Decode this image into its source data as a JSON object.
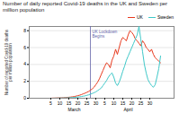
{
  "chart_data": {
    "type": "line",
    "title": "Number of daily reported Covid-19 deaths in the UK and Sweden per million population",
    "ylabel": "Number of reported Covid-19 deaths\nper million population",
    "categories": [
      null,
      null,
      null,
      null,
      "5",
      null,
      null,
      null,
      null,
      "10",
      null,
      null,
      null,
      null,
      "15",
      null,
      null,
      null,
      null,
      "20",
      null,
      null,
      null,
      null,
      "25",
      null,
      null,
      null,
      null,
      "30",
      null,
      null,
      null,
      null,
      "5",
      null,
      null,
      null,
      null,
      "10",
      null,
      null,
      null,
      null,
      "15",
      null,
      null,
      null,
      null,
      "20",
      null,
      null,
      null,
      null,
      "25",
      null,
      null,
      null,
      null,
      "30",
      null,
      null,
      null,
      null,
      null,
      null
    ],
    "series": [
      {
        "name": "UK",
        "color": "#e8391d",
        "values": [
          0.0,
          0.0,
          0.0,
          0.0,
          0.0,
          0.02,
          0.02,
          0.03,
          0.04,
          0.04,
          0.05,
          0.06,
          0.08,
          0.1,
          0.12,
          0.14,
          0.17,
          0.2,
          0.25,
          0.3,
          0.36,
          0.43,
          0.52,
          0.6,
          0.7,
          0.8,
          0.95,
          1.1,
          1.3,
          1.6,
          1.9,
          2.3,
          2.8,
          3.3,
          3.8,
          4.2,
          4.0,
          3.6,
          4.5,
          5.0,
          5.8,
          5.2,
          6.0,
          6.8,
          7.2,
          7.0,
          6.8,
          7.5,
          8.0,
          7.8,
          7.5,
          7.0,
          6.8,
          6.5,
          6.2,
          6.8,
          6.5,
          6.0,
          5.8,
          5.5,
          5.8,
          5.2,
          4.8,
          4.6,
          4.4,
          4.2
        ]
      },
      {
        "name": "Sweden",
        "color": "#3ec8c8",
        "values": [
          0.0,
          0.0,
          0.0,
          0.0,
          0.0,
          0.0,
          0.01,
          0.01,
          0.02,
          0.02,
          0.03,
          0.03,
          0.04,
          0.05,
          0.06,
          0.07,
          0.08,
          0.1,
          0.12,
          0.14,
          0.17,
          0.2,
          0.24,
          0.28,
          0.34,
          0.4,
          0.48,
          0.56,
          0.65,
          0.75,
          0.9,
          1.05,
          1.2,
          1.5,
          1.8,
          2.1,
          2.5,
          2.8,
          3.0,
          2.5,
          1.8,
          1.5,
          1.9,
          2.5,
          3.2,
          3.8,
          4.5,
          5.0,
          5.5,
          6.0,
          6.5,
          7.0,
          7.5,
          8.5,
          7.0,
          5.5,
          4.0,
          3.0,
          2.2,
          1.8,
          1.5,
          1.3,
          1.6,
          2.5,
          3.5,
          5.0
        ]
      }
    ],
    "ylim": [
      0,
      8.5
    ],
    "yticks": [
      0,
      2,
      4,
      6,
      8
    ],
    "grid": true,
    "legend": "upper right",
    "annotations": [
      {
        "type": "vline",
        "text": "UK Lockdown\nBegins",
        "x": 26,
        "y": 8.0,
        "color": "#6666aa"
      },
      {
        "text": "March",
        "x": 17
      },
      {
        "text": "April",
        "x": 47
      }
    ]
  }
}
